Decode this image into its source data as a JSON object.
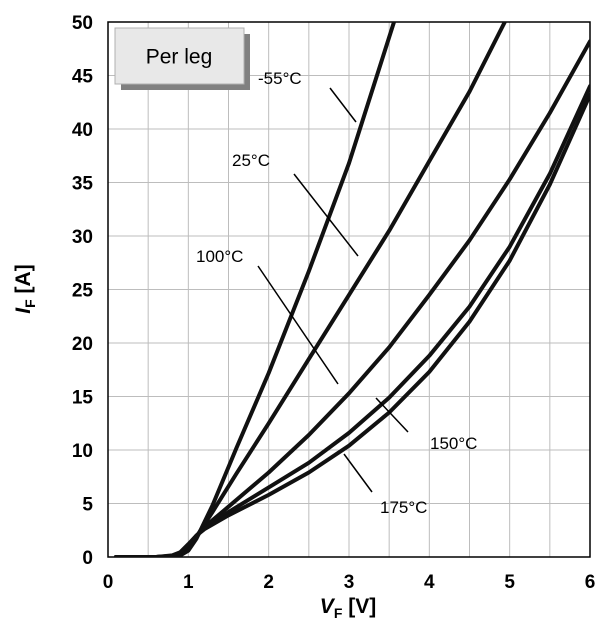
{
  "chart_data": {
    "type": "line",
    "legend_box": "Per leg",
    "xlabel": {
      "symbol": "V",
      "subscript": "F",
      "unit": " [V]"
    },
    "ylabel": {
      "symbol": "I",
      "subscript": "F",
      "unit": " [A]"
    },
    "xlim": [
      0,
      6
    ],
    "ylim": [
      0,
      50
    ],
    "xticks": [
      "0",
      "1",
      "2",
      "3",
      "4",
      "5",
      "6"
    ],
    "yticks": [
      "0",
      "5",
      "10",
      "15",
      "20",
      "25",
      "30",
      "35",
      "40",
      "45",
      "50"
    ],
    "grid": true,
    "series": [
      {
        "name": "-55°C",
        "x": [
          0.1,
          0.6,
          0.8,
          0.9,
          1.0,
          1.1,
          1.3,
          1.6,
          2.0,
          2.5,
          3.0,
          3.56
        ],
        "y": [
          0,
          0,
          0.05,
          0.15,
          0.6,
          1.7,
          4.8,
          10.2,
          17.2,
          26.7,
          36.8,
          50
        ]
      },
      {
        "name": "25°C",
        "x": [
          0.1,
          0.6,
          0.8,
          0.9,
          1.0,
          1.1,
          1.3,
          1.6,
          2.0,
          2.5,
          3.0,
          3.5,
          4.0,
          4.5,
          4.94
        ],
        "y": [
          0,
          0,
          0.05,
          0.2,
          0.8,
          1.9,
          4.2,
          7.8,
          12.5,
          18.5,
          24.5,
          30.5,
          37.0,
          43.5,
          50
        ]
      },
      {
        "name": "100°C",
        "x": [
          0.1,
          0.6,
          0.8,
          0.9,
          1.0,
          1.1,
          1.2,
          1.5,
          2.0,
          2.5,
          3.0,
          3.5,
          4.0,
          4.5,
          5.0,
          5.5,
          6.0
        ],
        "y": [
          0,
          0,
          0.1,
          0.3,
          1.0,
          1.9,
          2.8,
          4.7,
          7.9,
          11.4,
          15.3,
          19.6,
          24.5,
          29.6,
          35.3,
          41.5,
          48.2
        ]
      },
      {
        "name": "150°C",
        "x": [
          0.1,
          0.6,
          0.8,
          0.9,
          1.0,
          1.1,
          1.2,
          1.5,
          2.0,
          2.5,
          3.0,
          3.5,
          4.0,
          4.5,
          5.0,
          5.5,
          6.0
        ],
        "y": [
          0,
          0,
          0.1,
          0.4,
          1.1,
          2.0,
          2.7,
          4.2,
          6.5,
          8.8,
          11.6,
          14.9,
          18.8,
          23.4,
          29.0,
          35.8,
          44.0
        ]
      },
      {
        "name": "175°C",
        "x": [
          0.1,
          0.6,
          0.8,
          0.9,
          1.0,
          1.1,
          1.2,
          1.5,
          2.0,
          2.5,
          3.0,
          3.5,
          4.0,
          4.5,
          5.0,
          5.5,
          6.0
        ],
        "y": [
          0,
          0,
          0.15,
          0.45,
          1.2,
          2.0,
          2.6,
          3.9,
          5.8,
          7.9,
          10.4,
          13.5,
          17.3,
          22.0,
          27.7,
          34.8,
          43.2
        ]
      }
    ]
  }
}
